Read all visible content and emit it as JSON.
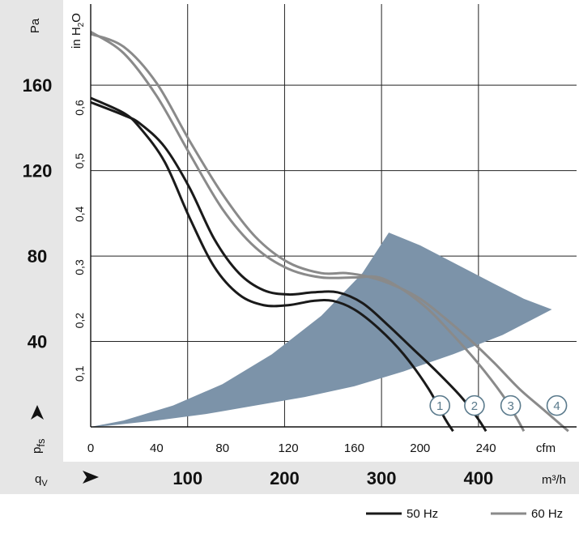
{
  "chart_data": {
    "type": "line",
    "title": "",
    "x_axis": {
      "unit": "cfm",
      "ticks": [
        "0",
        "40",
        "80",
        "120",
        "160",
        "200",
        "240"
      ],
      "range": [
        0,
        295
      ]
    },
    "x2_axis": {
      "label": "q",
      "label_sub": "V",
      "unit": "m³/h",
      "ticks": [
        "100",
        "200",
        "300",
        "400"
      ]
    },
    "y_axis": {
      "label": "p",
      "label_sub": "fs",
      "unit": "Pa",
      "ticks": [
        "40",
        "80",
        "120",
        "160"
      ],
      "range": [
        0,
        198
      ]
    },
    "y2_axis": {
      "unit": "in H",
      "unit_sub": "2",
      "unit_tail": "O",
      "ticks": [
        "0,1",
        "0,2",
        "0,3",
        "0,4",
        "0,5",
        "0,6"
      ]
    },
    "grid": true,
    "colors": {
      "hz50": "#1a1a1a",
      "hz60": "#8a8a8a",
      "region": "#7c93a9",
      "panel": "#e6e6e6",
      "marker": "#5a7a8c"
    },
    "operating_region": {
      "upper": [
        [
          0,
          0
        ],
        [
          20,
          3
        ],
        [
          50,
          10
        ],
        [
          80,
          20
        ],
        [
          110,
          34
        ],
        [
          140,
          52
        ],
        [
          165,
          72
        ],
        [
          181,
          91
        ],
        [
          200,
          85
        ],
        [
          220,
          77
        ],
        [
          245,
          67
        ],
        [
          263,
          60
        ],
        [
          280,
          55
        ]
      ],
      "lower": [
        [
          280,
          55
        ],
        [
          250,
          43
        ],
        [
          220,
          34
        ],
        [
          190,
          26
        ],
        [
          160,
          19
        ],
        [
          130,
          14
        ],
        [
          100,
          10
        ],
        [
          70,
          6
        ],
        [
          40,
          3
        ],
        [
          10,
          0.5
        ],
        [
          0,
          0
        ]
      ]
    },
    "series": [
      {
        "name": "1",
        "frequency": "50 Hz",
        "points": [
          [
            0,
            154
          ],
          [
            20,
            147
          ],
          [
            30,
            140
          ],
          [
            45,
            124
          ],
          [
            60,
            98
          ],
          [
            75,
            75
          ],
          [
            90,
            62
          ],
          [
            105,
            57
          ],
          [
            120,
            57
          ],
          [
            135,
            59
          ],
          [
            147,
            59
          ],
          [
            160,
            55
          ],
          [
            175,
            46
          ],
          [
            190,
            34
          ],
          [
            205,
            18
          ],
          [
            215,
            4
          ],
          [
            220,
            -2
          ]
        ]
      },
      {
        "name": "2",
        "frequency": "50 Hz",
        "points": [
          [
            0,
            152
          ],
          [
            20,
            146
          ],
          [
            30,
            142
          ],
          [
            45,
            131
          ],
          [
            60,
            112
          ],
          [
            75,
            88
          ],
          [
            90,
            72
          ],
          [
            105,
            64
          ],
          [
            120,
            62
          ],
          [
            135,
            63
          ],
          [
            150,
            63
          ],
          [
            165,
            58
          ],
          [
            180,
            48
          ],
          [
            195,
            37
          ],
          [
            210,
            26
          ],
          [
            225,
            14
          ],
          [
            235,
            4
          ],
          [
            240,
            -2
          ]
        ]
      },
      {
        "name": "3",
        "frequency": "60 Hz",
        "points": [
          [
            0,
            185
          ],
          [
            20,
            175
          ],
          [
            40,
            155
          ],
          [
            60,
            128
          ],
          [
            80,
            102
          ],
          [
            100,
            84
          ],
          [
            120,
            74
          ],
          [
            140,
            70
          ],
          [
            160,
            70
          ],
          [
            175,
            70
          ],
          [
            190,
            64
          ],
          [
            205,
            55
          ],
          [
            220,
            43
          ],
          [
            235,
            30
          ],
          [
            250,
            15
          ],
          [
            258,
            5
          ],
          [
            263,
            -2
          ]
        ]
      },
      {
        "name": "4",
        "frequency": "60 Hz",
        "points": [
          [
            0,
            184
          ],
          [
            20,
            178
          ],
          [
            40,
            161
          ],
          [
            60,
            134
          ],
          [
            80,
            109
          ],
          [
            100,
            89
          ],
          [
            120,
            77
          ],
          [
            140,
            72
          ],
          [
            155,
            72
          ],
          [
            170,
            70
          ],
          [
            185,
            66
          ],
          [
            200,
            60
          ],
          [
            215,
            51
          ],
          [
            230,
            41
          ],
          [
            245,
            30
          ],
          [
            260,
            18
          ],
          [
            275,
            8
          ],
          [
            290,
            -2
          ]
        ]
      }
    ],
    "legend": [
      {
        "label": "50 Hz",
        "color": "#1a1a1a"
      },
      {
        "label": "60 Hz",
        "color": "#8a8a8a"
      }
    ]
  }
}
